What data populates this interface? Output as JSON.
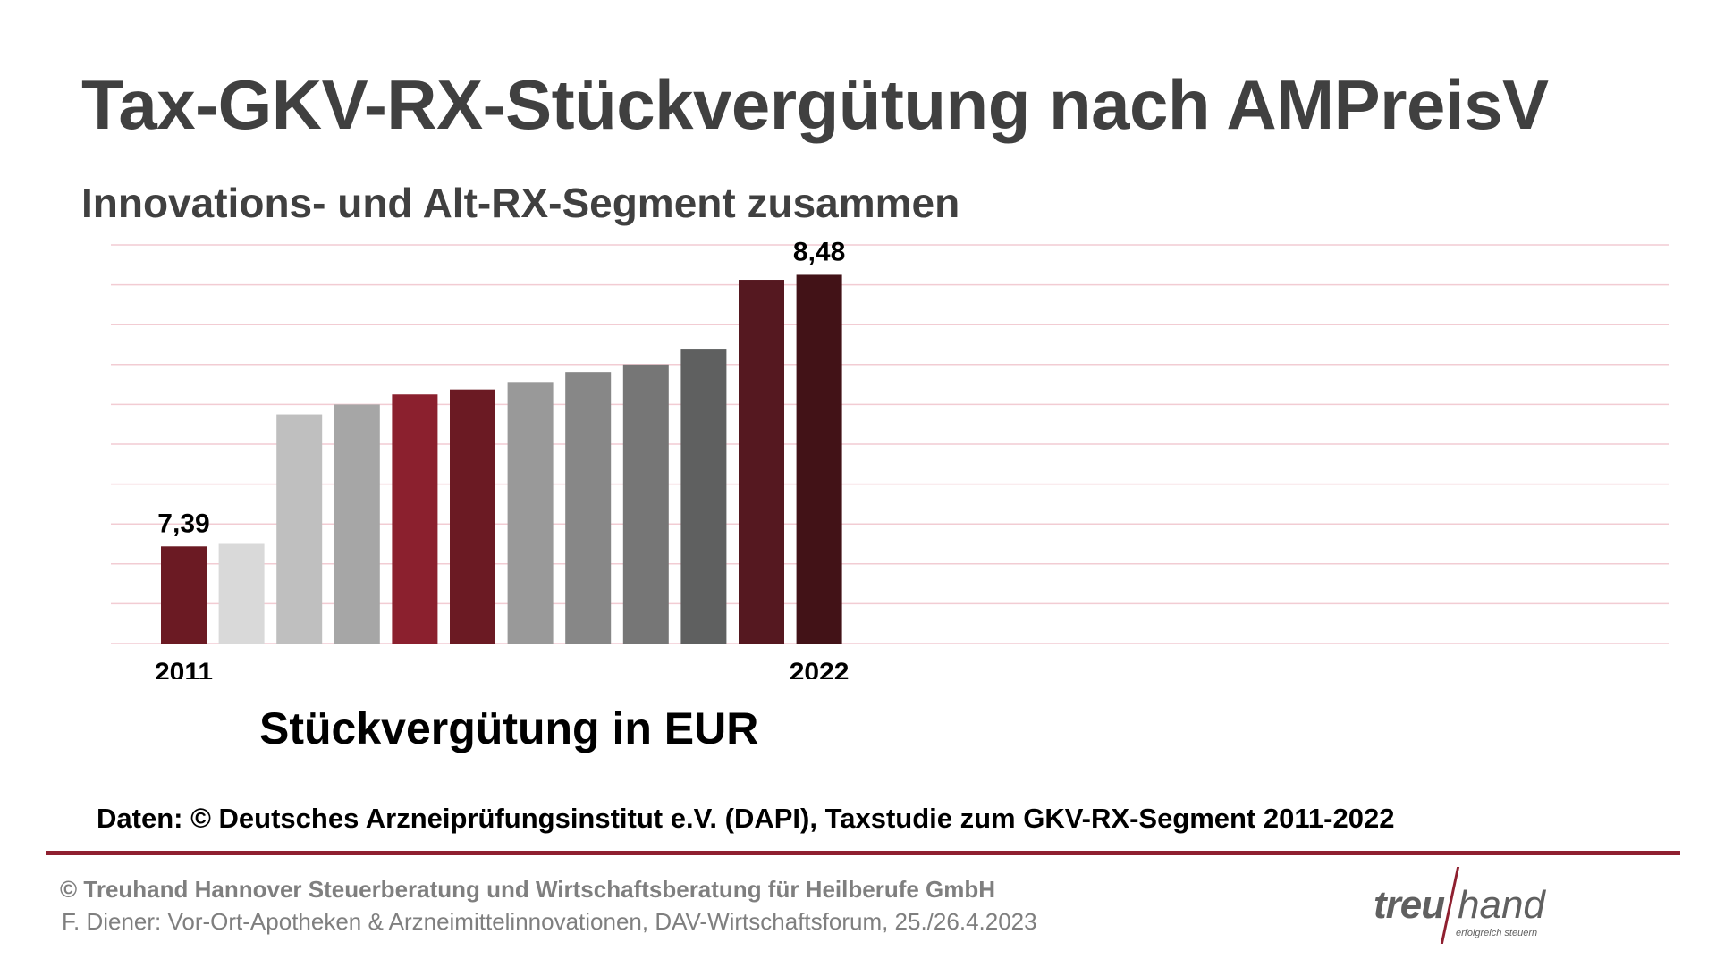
{
  "header": {
    "title": "Tax-GKV-RX-Stückvergütung nach AMPreisV",
    "subtitle": "Innovations- und Alt-RX-Segment zusammen"
  },
  "chart_data": {
    "type": "bar",
    "categories": [
      "2011",
      "",
      "",
      "",
      "",
      "",
      "",
      "",
      "",
      "",
      "",
      "2022"
    ],
    "values": [
      7.39,
      7.4,
      7.92,
      7.96,
      8.0,
      8.02,
      8.05,
      8.09,
      8.12,
      8.18,
      8.46,
      8.48
    ],
    "data_labels": [
      {
        "index": 0,
        "text": "7,39"
      },
      {
        "index": 11,
        "text": "8,48"
      }
    ],
    "bar_colors": [
      "#6b1a23",
      "#d9d9d9",
      "#bfbfbf",
      "#a6a6a6",
      "#8b202e",
      "#6b1a23",
      "#999999",
      "#878787",
      "#767676",
      "#5f6060",
      "#551820",
      "#421217"
    ],
    "xlabel": "Stückvergütung in EUR",
    "ylabel": "",
    "ylim": [
      7.0,
      8.6
    ],
    "gridlines": 10,
    "grid": true,
    "gridline_color": "#f2ccd3",
    "legend": "none"
  },
  "footer": {
    "source": "Daten: © Deutsches Arzneiprüfungsinstitut e.V. (DAPI), Taxstudie zum GKV-RX-Segment 2011-2022",
    "copyright": "© Treuhand Hannover Steuerberatung und Wirtschaftsberatung für Heilberufe GmbH",
    "event": "F. Diener: Vor-Ort-Apotheken & Arzneimittelinnovationen, DAV-Wirtschaftsforum, 25./26.4.2023"
  },
  "logo": {
    "part1": "treu",
    "part2": "hand",
    "tagline": "erfolgreich steuern"
  }
}
